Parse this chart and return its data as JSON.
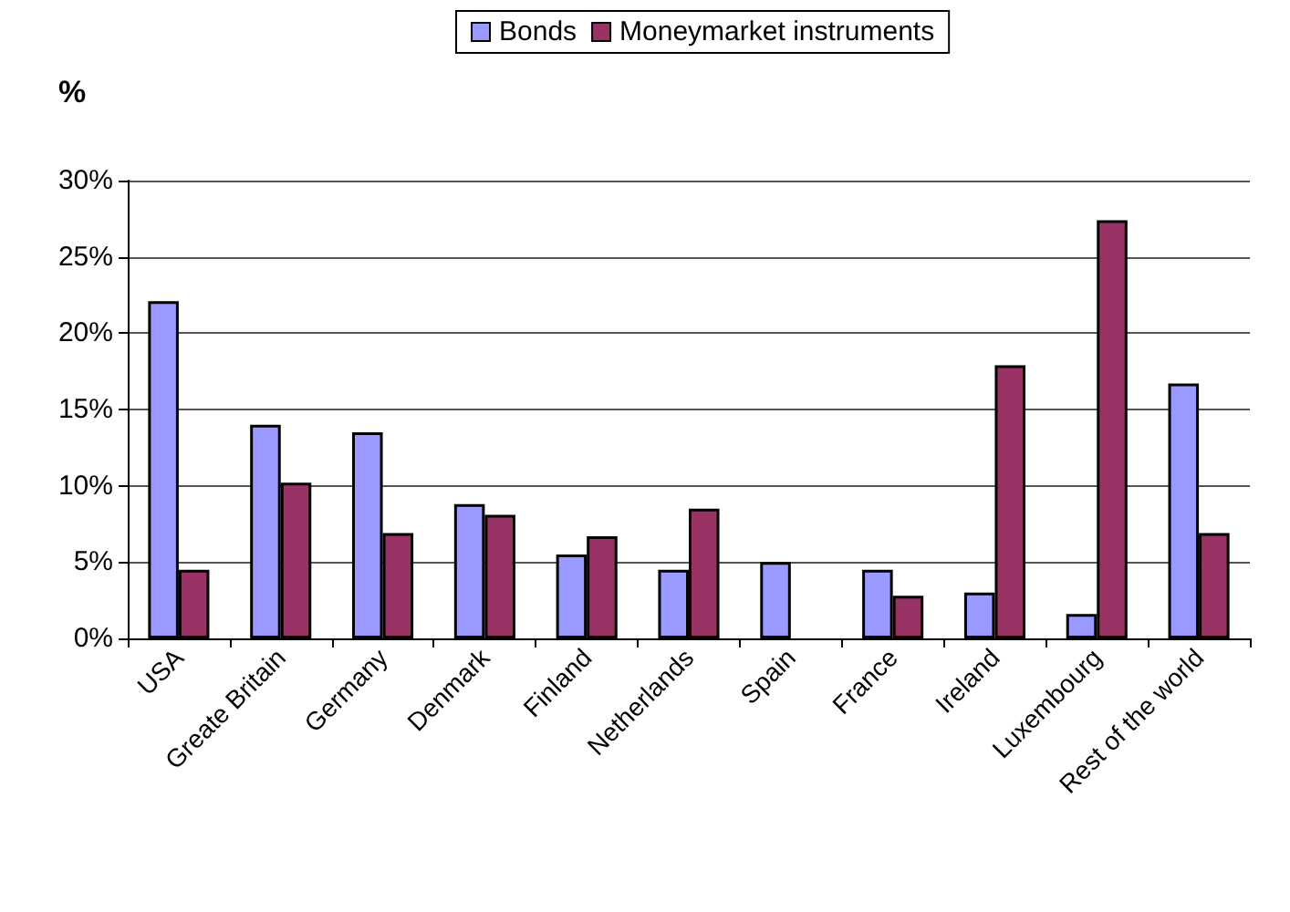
{
  "chart_data": {
    "type": "bar",
    "ylabel": "%",
    "categories": [
      "USA",
      "Greate Britain",
      "Germany",
      "Denmark",
      "Finland",
      "Netherlands",
      "Spain",
      "France",
      "Ireland",
      "Luxembourg",
      "Rest of the world"
    ],
    "series": [
      {
        "name": "Bonds",
        "color": "#9999ff",
        "values": [
          22.1,
          14.0,
          13.5,
          8.8,
          5.5,
          4.5,
          5.0,
          4.5,
          3.0,
          1.6,
          16.7
        ]
      },
      {
        "name": "Moneymarket instruments",
        "color": "#993366",
        "values": [
          4.5,
          10.2,
          6.9,
          8.1,
          6.7,
          8.5,
          null,
          2.8,
          17.9,
          27.4,
          6.9
        ]
      }
    ],
    "ylim": [
      0,
      30
    ],
    "yticks": [
      {
        "value": 0,
        "label": "0%"
      },
      {
        "value": 5,
        "label": "5%"
      },
      {
        "value": 10,
        "label": "10%"
      },
      {
        "value": 15,
        "label": "15%"
      },
      {
        "value": 20,
        "label": "20%"
      },
      {
        "value": 25,
        "label": "25%"
      },
      {
        "value": 30,
        "label": "30%"
      }
    ],
    "grid": "y",
    "legend": "top"
  }
}
